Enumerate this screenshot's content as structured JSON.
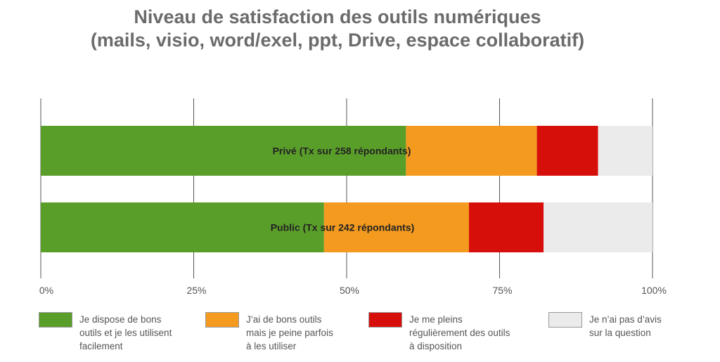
{
  "chart_data": {
    "type": "bar",
    "orientation": "horizontal",
    "stacked": true,
    "title": [
      "Niveau de satisfaction des outils numériques",
      "(mails, visio, word/exel, ppt, Drive, espace collaboratif)"
    ],
    "categories": [
      "Privé (Tx sur 258 répondants)",
      "Public (Tx sur 242 répondants)"
    ],
    "series": [
      {
        "name": [
          "Je dispose de bons",
          "outils et je les utilisent",
          "facilement"
        ],
        "color": "#5a9e2a",
        "values": [
          59.7,
          46.3
        ]
      },
      {
        "name": [
          "J’ai de bons outils",
          "mais je peine parfois",
          "à les utiliser"
        ],
        "color": "#f39a1f",
        "values": [
          21.4,
          23.7
        ]
      },
      {
        "name": [
          "Je me pleins",
          "régulièrement des outils",
          "à disposition"
        ],
        "color": "#d60f0a",
        "values": [
          10.0,
          12.2
        ]
      },
      {
        "name": [
          "Je n’ai pas d’avis",
          "sur la question"
        ],
        "color": "#ebebeb",
        "values": [
          8.9,
          17.8
        ]
      }
    ],
    "xticks": [
      "0%",
      "25%",
      "50%",
      "75%",
      "100%"
    ],
    "xlim": [
      0,
      100
    ],
    "grid": true,
    "legend_position": "bottom"
  }
}
